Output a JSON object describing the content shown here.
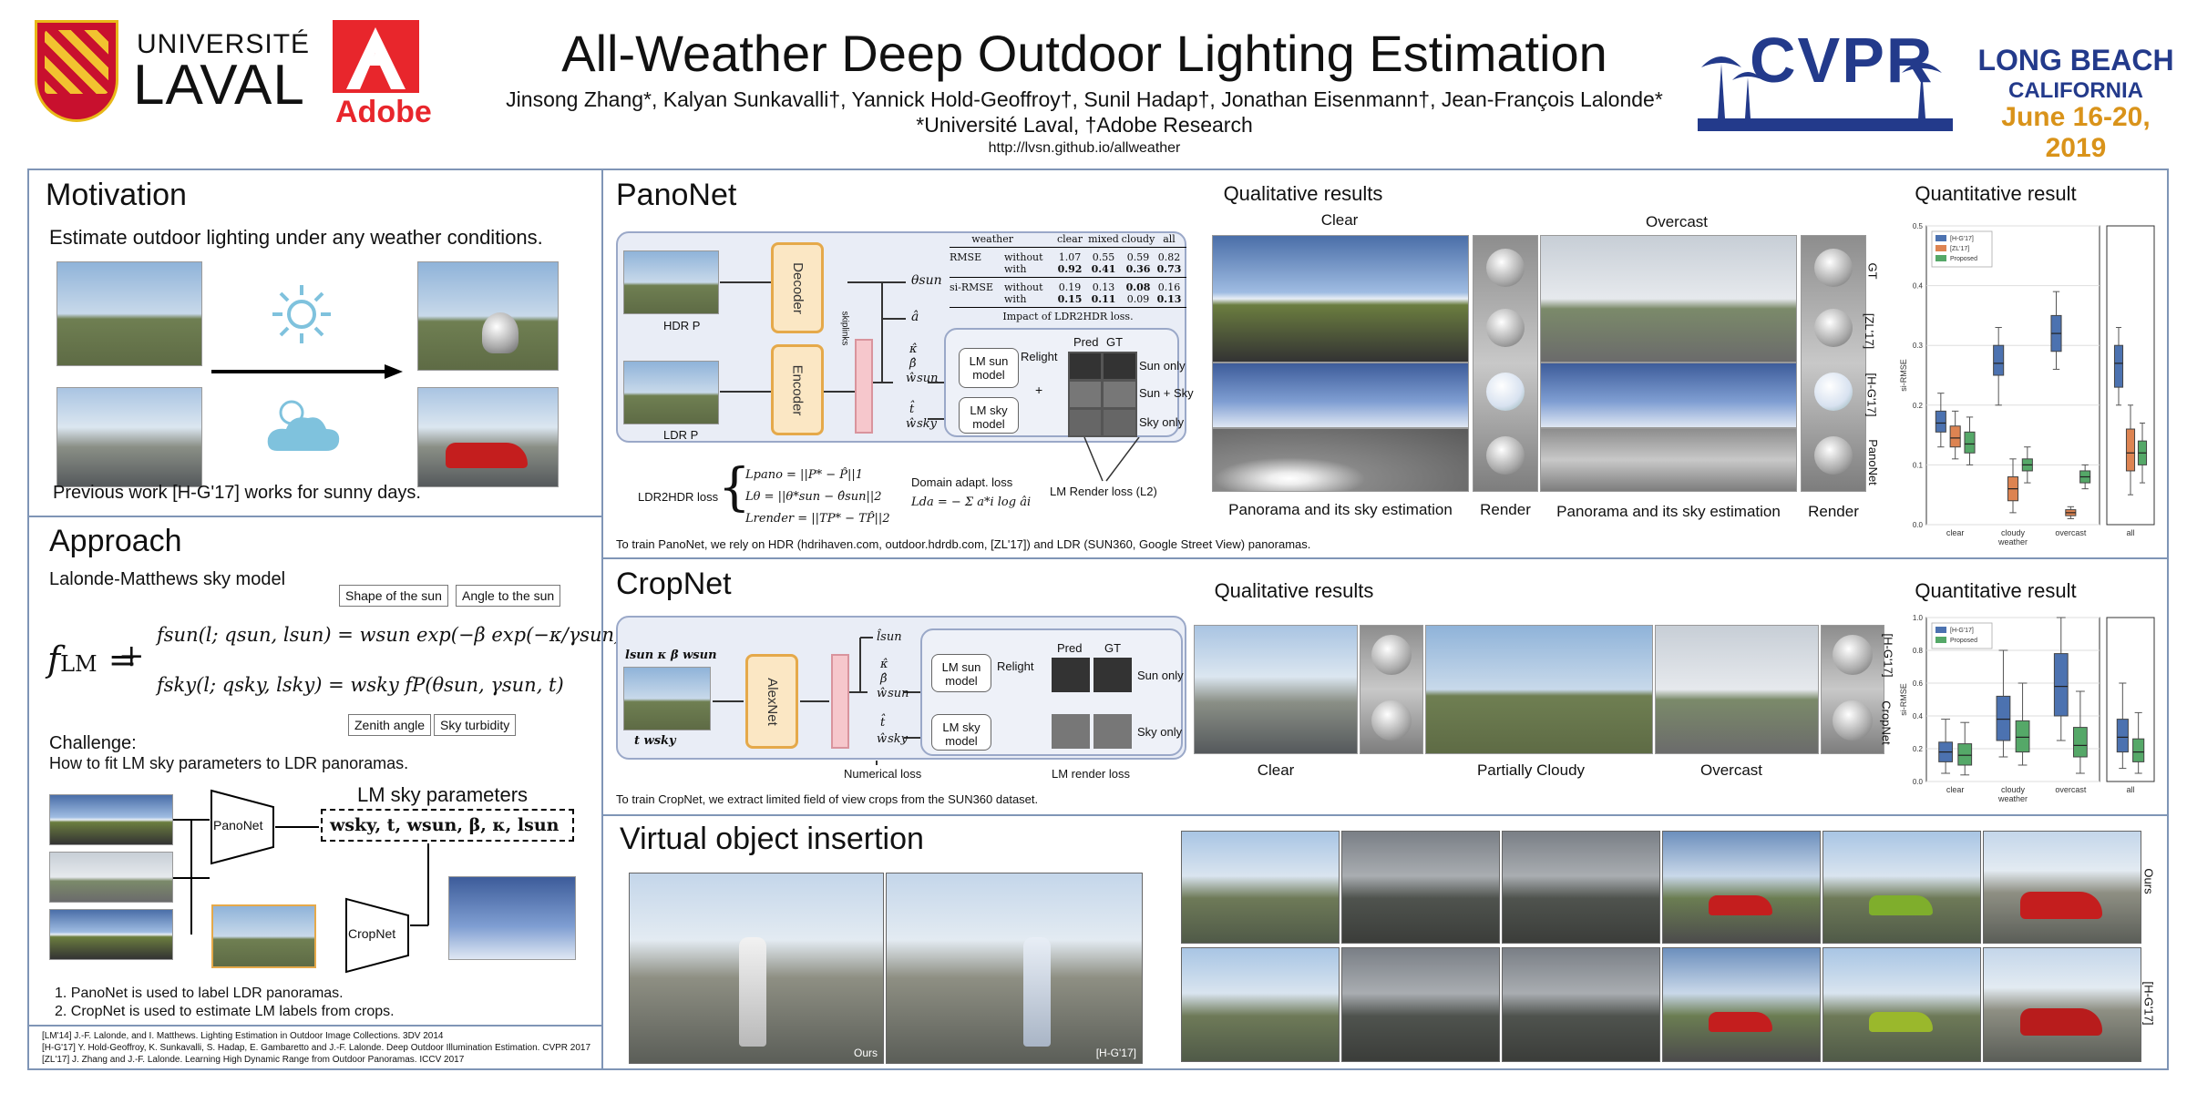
{
  "header": {
    "uni_name_1": "UNIVERSITÉ",
    "uni_name_2": "LAVAL",
    "adobe": "Adobe",
    "title": "All-Weather Deep Outdoor Lighting Estimation",
    "authors": "Jinsong Zhang*, Kalyan Sunkavalli†, Yannick Hold-Geoffroy†, Sunil Hadap†, Jonathan Eisenmann†, Jean-François Lalonde*",
    "affiliations": "*Université Laval, †Adobe Research",
    "url": "http://lvsn.github.io/allweather",
    "cvpr": "CVPR",
    "location_1": "LONG BEACH",
    "location_2": "CALIFORNIA",
    "dates": "June 16-20, 2019"
  },
  "motivation": {
    "title": "Motivation",
    "text": "Estimate outdoor lighting under any weather conditions.",
    "footer": "Previous work [H-G'17] works for sunny days."
  },
  "approach": {
    "title": "Approach",
    "subtitle": "Lalonde-Matthews sky model",
    "label_shape": "Shape of the sun",
    "label_angle": "Angle to the sun",
    "label_zenith": "Zenith angle",
    "label_turbidity": "Sky turbidity",
    "f_lm": "fLM = +",
    "f_sun": "fsun(l; qsun, lsun) = wsun exp(−β exp(−κ/γsun))",
    "f_sky": "fsky(l; qsky, lsky) = wsky fP(θsun, γsun, t)",
    "challenge_title": "Challenge:",
    "challenge_text": "How to fit LM sky parameters to LDR panoramas.",
    "lm_params_title": "LM sky parameters",
    "lm_params": "wsky,  t,  wsun,  β,  κ,  lsun",
    "panonet": "PanoNet",
    "cropnet": "CropNet",
    "steps": [
      "1.   PanoNet is used to label LDR panoramas.",
      "2.   CropNet is used to estimate LM labels from crops."
    ],
    "refs": [
      "[LM'14] J.-F. Lalonde, and I. Matthews. Lighting Estimation in Outdoor Image Collections. 3DV 2014",
      "[H-G'17] Y. Hold-Geoffroy, K. Sunkavalli, S. Hadap, E. Gambaretto and J.-F. Lalonde. Deep Outdoor Illumination Estimation. CVPR 2017",
      "[ZL'17] J. Zhang and J.-F. Lalonde. Learning High Dynamic Range from Outdoor Panoramas. ICCV 2017"
    ]
  },
  "panonet": {
    "title": "PanoNet",
    "hdr_label": "HDR  P",
    "ldr_label": "LDR  P",
    "decoder": "Decoder",
    "encoder": "Encoder",
    "skip": "skiplinks",
    "theta_sun": "θsun",
    "a": "â",
    "kappa": "κ̂",
    "beta": "β̂",
    "w_sun": "ŵsun",
    "t": "t̂",
    "w_sky": "ŵsky",
    "lm_sun": "LM sun model",
    "lm_sky": "LM sky model",
    "relight": "Relight",
    "pred": "Pred",
    "gt": "GT",
    "sun_only": "Sun only",
    "sun_sky": "Sun + Sky",
    "sky_only": "Sky only",
    "plus": "+",
    "loss_ldr2hdr": "LDR2HDR loss",
    "loss_pano": "Lpano = ||P* − P̂||1",
    "loss_theta": "Lθ = ||θ*sun − θ̂sun||2",
    "loss_render": "Lrender = ||TP* − TP̂||2",
    "domain_title": "Domain adapt. loss",
    "domain_formula": "Lda = − Σ a*i log âi",
    "lm_render_loss": "LM Render loss (L2)",
    "table_caption": "Impact of LDR2HDR loss.",
    "table_header": [
      "weather",
      "",
      "clear",
      "mixed",
      "cloudy",
      "all"
    ],
    "table_rows": [
      [
        "RMSE",
        "without",
        "1.07",
        "0.55",
        "0.59",
        "0.82"
      ],
      [
        "",
        "with",
        "0.92",
        "0.41",
        "0.36",
        "0.73"
      ],
      [
        "si-RMSE",
        "without",
        "0.19",
        "0.13",
        "0.08",
        "0.16"
      ],
      [
        "",
        "with",
        "0.15",
        "0.11",
        "0.09",
        "0.13"
      ]
    ],
    "footer": "To train PanoNet, we rely on HDR (hdrihaven.com, outdoor.hdrdb.com, [ZL'17]) and LDR (SUN360, Google Street View) panoramas."
  },
  "pano_qual": {
    "title": "Qualitative results",
    "clear": "Clear",
    "overcast": "Overcast",
    "row_labels": [
      "GT",
      "[ZL'17]",
      "[H-G'17]",
      "PanoNet"
    ],
    "cap_pano_1": "Panorama and its sky estimation",
    "cap_render_1": "Render",
    "cap_pano_2": "Panorama and its sky estimation",
    "cap_render_2": "Render"
  },
  "pano_quant": {
    "title": "Quantitative result"
  },
  "cropnet": {
    "title": "CropNet",
    "inputs": "lsun  κ  β  wsun",
    "inputs2": "t   wsky",
    "alexnet": "AlexNet",
    "l_sun": "l̂sun",
    "kappa": "κ̂",
    "beta": "β̂",
    "w_sun": "ŵsun",
    "t": "t̂",
    "w_sky": "ŵsky",
    "lm_sun": "LM sun model",
    "lm_sky": "LM sky model",
    "relight": "Relight",
    "pred": "Pred",
    "gt": "GT",
    "sun_only": "Sun only",
    "sky_only": "Sky only",
    "num_loss": "Numerical loss",
    "render_loss": "LM render loss",
    "footer": "To train CropNet, we extract limited field of view crops from the SUN360 dataset."
  },
  "crop_qual": {
    "title": "Qualitative results",
    "row_labels": [
      "[H-G'17]",
      "CropNet"
    ],
    "clear": "Clear",
    "partly": "Partially Cloudy",
    "overcast": "Overcast"
  },
  "crop_quant": {
    "title": "Quantitative result"
  },
  "insertion": {
    "title": "Virtual object insertion",
    "ours": "Ours",
    "hg": "[H-G'17]",
    "row_label_1": "Ours",
    "row_label_2": "[H-G'17]"
  },
  "chart_data": [
    {
      "type": "box",
      "ylabel": "si-RMSE",
      "ylim": [
        0.0,
        0.5
      ],
      "yticks": [
        "0.0",
        "0.1",
        "0.2",
        "0.3",
        "0.4",
        "0.5"
      ],
      "categories": [
        "clear",
        "cloudy weather",
        "overcast",
        "all"
      ],
      "legend": [
        "[H-G'17]",
        "[ZL'17]",
        "Proposed"
      ],
      "legend_position": "top-left",
      "colors": [
        "#4c72b0",
        "#dd8452",
        "#55a868"
      ],
      "boxes": [
        [
          [
            0.13,
            0.155,
            0.17,
            0.19,
            0.22
          ],
          [
            0.11,
            0.13,
            0.145,
            0.165,
            0.19
          ],
          [
            0.1,
            0.12,
            0.135,
            0.155,
            0.18
          ]
        ],
        [
          [
            0.2,
            0.25,
            0.27,
            0.3,
            0.33
          ],
          [
            0.02,
            0.04,
            0.06,
            0.08,
            0.11
          ],
          [
            0.07,
            0.09,
            0.1,
            0.11,
            0.13
          ]
        ],
        [
          [
            0.26,
            0.29,
            0.32,
            0.35,
            0.39
          ],
          [
            0.01,
            0.015,
            0.02,
            0.025,
            0.03
          ],
          [
            0.06,
            0.07,
            0.08,
            0.09,
            0.1
          ]
        ],
        [
          [
            0.2,
            0.23,
            0.27,
            0.3,
            0.33
          ],
          [
            0.05,
            0.09,
            0.12,
            0.16,
            0.2
          ],
          [
            0.07,
            0.1,
            0.12,
            0.14,
            0.17
          ]
        ]
      ]
    },
    {
      "type": "box",
      "ylabel": "si-RMSE",
      "ylim": [
        0.0,
        1.0
      ],
      "yticks": [
        "0.0",
        "0.2",
        "0.4",
        "0.6",
        "0.8",
        "1.0"
      ],
      "categories": [
        "clear",
        "cloudy weather",
        "overcast",
        "all"
      ],
      "legend": [
        "[H-G'17]",
        "Proposed"
      ],
      "legend_position": "top-left",
      "colors": [
        "#4c72b0",
        "#55a868"
      ],
      "boxes": [
        [
          [
            0.05,
            0.12,
            0.18,
            0.24,
            0.38
          ],
          [
            0.04,
            0.1,
            0.16,
            0.23,
            0.36
          ]
        ],
        [
          [
            0.15,
            0.25,
            0.38,
            0.52,
            0.8
          ],
          [
            0.1,
            0.18,
            0.27,
            0.37,
            0.6
          ]
        ],
        [
          [
            0.25,
            0.4,
            0.58,
            0.78,
            1.0
          ],
          [
            0.05,
            0.15,
            0.22,
            0.33,
            0.55
          ]
        ],
        [
          [
            0.08,
            0.18,
            0.27,
            0.38,
            0.6
          ],
          [
            0.05,
            0.12,
            0.18,
            0.26,
            0.42
          ]
        ]
      ]
    }
  ]
}
